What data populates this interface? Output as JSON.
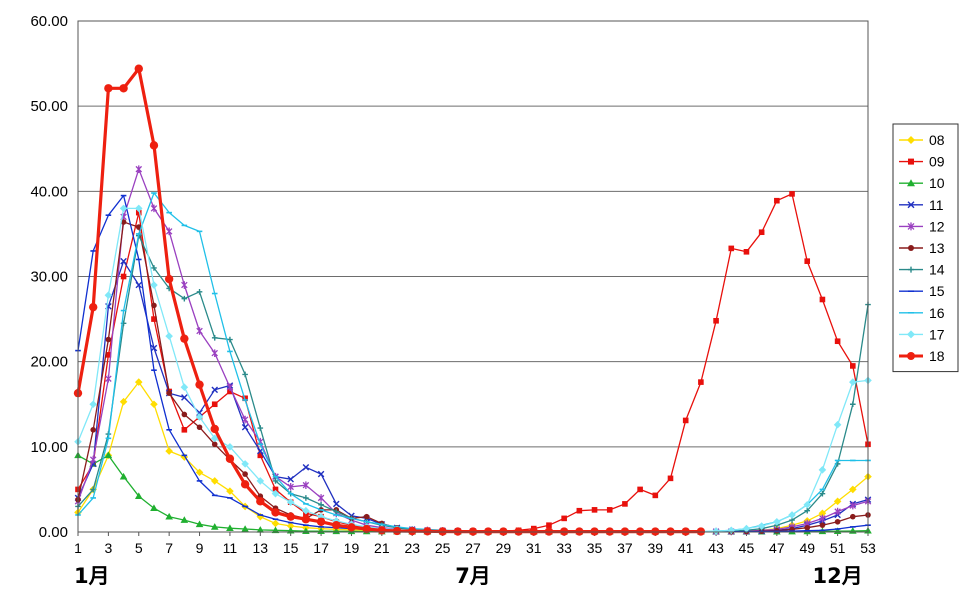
{
  "chart_data": {
    "type": "line",
    "title": "",
    "xlabel": "",
    "ylabel": "",
    "ylim": [
      0,
      60
    ],
    "xlim": [
      1,
      53
    ],
    "y_ticks": [
      "0.00",
      "10.00",
      "20.00",
      "30.00",
      "40.00",
      "50.00",
      "60.00"
    ],
    "x_ticks": [
      1,
      3,
      5,
      7,
      9,
      11,
      13,
      15,
      17,
      19,
      21,
      23,
      25,
      27,
      29,
      31,
      33,
      35,
      37,
      39,
      41,
      43,
      45,
      47,
      49,
      51,
      53
    ],
    "month_labels": [
      {
        "week": 1,
        "text": "1月"
      },
      {
        "week": 27,
        "text": "7月"
      },
      {
        "week": 51,
        "text": "12月"
      }
    ],
    "grid": "horizontal",
    "legend_position": "right",
    "series": [
      {
        "name": "08",
        "color": "#ffdd00",
        "marker": "diamond",
        "values": [
          2.3,
          5.0,
          9.0,
          15.3,
          17.6,
          15.0,
          9.5,
          8.8,
          7.0,
          6.0,
          4.8,
          3.0,
          1.8,
          1.0,
          0.7,
          0.5,
          0.4,
          0.3,
          0.25,
          0.2,
          0.15,
          0.12,
          0.1,
          0.1,
          0.08,
          0.07,
          0.06,
          0.05,
          0.05,
          0.05,
          0.05,
          0.05,
          0.05,
          0.05,
          0.05,
          0.05,
          0.05,
          0.05,
          0.05,
          0.05,
          0.05,
          0.05,
          0.05,
          0.05,
          0.1,
          0.2,
          0.4,
          0.8,
          1.3,
          2.2,
          3.6,
          5.0,
          6.5
        ]
      },
      {
        "name": "09",
        "color": "#e8100c",
        "marker": "square",
        "values": [
          5.0,
          8.0,
          20.8,
          30.0,
          37.5,
          25.0,
          16.5,
          12.0,
          13.5,
          15.0,
          16.5,
          15.7,
          9.0,
          5.0,
          3.5,
          2.2,
          1.8,
          1.2,
          0.8,
          0.5,
          0.35,
          0.25,
          0.2,
          0.15,
          0.1,
          0.1,
          0.1,
          0.1,
          0.1,
          0.2,
          0.4,
          0.8,
          1.6,
          2.5,
          2.6,
          2.6,
          3.3,
          5.0,
          4.3,
          6.3,
          13.1,
          17.6,
          24.8,
          33.3,
          32.9,
          35.2,
          38.9,
          39.7,
          31.8,
          27.3,
          22.4,
          19.5,
          10.3
        ]
      },
      {
        "name": "10",
        "color": "#20b030",
        "marker": "triangle",
        "values": [
          9.0,
          8.0,
          9.0,
          6.5,
          4.2,
          2.8,
          1.8,
          1.4,
          0.9,
          0.6,
          0.45,
          0.35,
          0.25,
          0.2,
          0.15,
          0.1,
          0.1,
          0.08,
          0.08,
          0.06,
          0.05,
          0.05,
          0.04,
          0.04,
          0.03,
          0.03,
          0.03,
          0.03,
          0.03,
          0.03,
          0.03,
          0.03,
          0.03,
          0.03,
          0.03,
          0.03,
          0.03,
          0.03,
          0.03,
          0.03,
          0.03,
          0.03,
          0.03,
          0.03,
          0.03,
          0.03,
          0.04,
          0.05,
          0.06,
          0.08,
          0.1,
          0.12,
          0.15
        ]
      },
      {
        "name": "11",
        "color": "#2030c0",
        "marker": "x",
        "values": [
          4.0,
          8.0,
          26.5,
          31.8,
          29.0,
          21.6,
          16.3,
          15.8,
          14.0,
          16.7,
          17.2,
          12.3,
          9.5,
          6.5,
          6.2,
          7.6,
          6.8,
          3.3,
          1.9,
          1.6,
          0.9,
          0.5,
          0.3,
          0.2,
          0.15,
          0.1,
          0.08,
          0.06,
          0.05,
          0.05,
          0.05,
          0.05,
          0.05,
          0.05,
          0.05,
          0.05,
          0.05,
          0.05,
          0.05,
          0.05,
          0.05,
          0.05,
          0.05,
          0.05,
          0.06,
          0.1,
          0.2,
          0.4,
          0.8,
          1.3,
          2.0,
          3.3,
          3.8
        ]
      },
      {
        "name": "12",
        "color": "#9a40c0",
        "marker": "star",
        "values": [
          3.6,
          8.5,
          18.0,
          37.0,
          42.6,
          38.0,
          35.3,
          29.0,
          23.6,
          21.0,
          17.0,
          13.2,
          10.6,
          6.5,
          5.3,
          5.5,
          4.0,
          2.2,
          1.4,
          0.8,
          0.5,
          0.35,
          0.25,
          0.18,
          0.12,
          0.1,
          0.08,
          0.06,
          0.05,
          0.05,
          0.05,
          0.05,
          0.05,
          0.05,
          0.05,
          0.05,
          0.05,
          0.05,
          0.05,
          0.05,
          0.05,
          0.05,
          0.05,
          0.06,
          0.1,
          0.2,
          0.3,
          0.6,
          1.0,
          1.6,
          2.4,
          3.1,
          3.6
        ]
      },
      {
        "name": "13",
        "color": "#8a1c1c",
        "marker": "circle",
        "values": [
          3.8,
          12.0,
          22.6,
          36.4,
          35.8,
          26.6,
          16.3,
          13.8,
          12.3,
          10.3,
          8.5,
          6.8,
          4.2,
          2.8,
          2.0,
          1.6,
          2.6,
          2.6,
          1.6,
          1.8,
          1.0,
          0.5,
          0.3,
          0.2,
          0.15,
          0.1,
          0.08,
          0.06,
          0.05,
          0.05,
          0.05,
          0.05,
          0.05,
          0.05,
          0.05,
          0.05,
          0.05,
          0.05,
          0.05,
          0.05,
          0.05,
          0.05,
          0.05,
          0.05,
          0.05,
          0.1,
          0.15,
          0.3,
          0.5,
          0.8,
          1.2,
          1.8,
          2.0
        ]
      },
      {
        "name": "14",
        "color": "#2a8a8a",
        "marker": "plus",
        "values": [
          3.0,
          5.0,
          11.5,
          24.5,
          34.8,
          31.0,
          28.6,
          27.4,
          28.2,
          22.8,
          22.6,
          18.5,
          12.2,
          6.0,
          4.5,
          4.0,
          3.2,
          2.4,
          1.6,
          1.2,
          0.8,
          0.5,
          0.3,
          0.2,
          0.15,
          0.1,
          0.08,
          0.06,
          0.05,
          0.05,
          0.05,
          0.05,
          0.05,
          0.05,
          0.05,
          0.05,
          0.05,
          0.05,
          0.05,
          0.05,
          0.05,
          0.05,
          0.05,
          0.1,
          0.2,
          0.4,
          0.8,
          1.4,
          2.5,
          4.5,
          8.0,
          15.0,
          26.7
        ]
      },
      {
        "name": "15",
        "color": "#1030d0",
        "marker": "dash",
        "values": [
          21.3,
          33.0,
          37.2,
          39.5,
          32.0,
          19.0,
          12.0,
          9.0,
          6.0,
          4.3,
          4.0,
          3.0,
          2.0,
          1.5,
          1.1,
          0.8,
          0.6,
          0.5,
          0.4,
          0.3,
          0.25,
          0.2,
          0.15,
          0.12,
          0.1,
          0.08,
          0.06,
          0.05,
          0.05,
          0.05,
          0.05,
          0.05,
          0.05,
          0.05,
          0.05,
          0.05,
          0.05,
          0.05,
          0.05,
          0.05,
          0.05,
          0.05,
          0.05,
          0.05,
          0.05,
          0.06,
          0.08,
          0.1,
          0.15,
          0.2,
          0.35,
          0.6,
          0.8
        ]
      },
      {
        "name": "16",
        "color": "#20c0e8",
        "marker": "dash",
        "values": [
          2.0,
          4.0,
          11.0,
          26.0,
          35.0,
          39.8,
          37.5,
          36.0,
          35.3,
          28.0,
          21.2,
          15.5,
          10.3,
          6.5,
          4.5,
          3.3,
          2.6,
          2.0,
          1.6,
          1.2,
          0.9,
          0.6,
          0.4,
          0.3,
          0.2,
          0.15,
          0.1,
          0.08,
          0.06,
          0.05,
          0.05,
          0.05,
          0.05,
          0.05,
          0.05,
          0.05,
          0.05,
          0.05,
          0.05,
          0.05,
          0.05,
          0.05,
          0.1,
          0.2,
          0.4,
          0.8,
          1.2,
          2.0,
          3.2,
          5.0,
          8.4,
          8.4,
          8.4
        ]
      },
      {
        "name": "17",
        "color": "#80e8f8",
        "marker": "diamond",
        "values": [
          10.6,
          15.0,
          27.8,
          38.0,
          38.0,
          29.0,
          23.0,
          17.0,
          13.5,
          11.0,
          10.0,
          8.0,
          6.0,
          4.5,
          3.5,
          2.5,
          1.8,
          1.3,
          0.9,
          0.6,
          0.4,
          0.3,
          0.2,
          0.15,
          0.1,
          0.08,
          0.06,
          0.05,
          0.05,
          0.05,
          0.05,
          0.05,
          0.05,
          0.05,
          0.05,
          0.05,
          0.05,
          0.05,
          0.05,
          0.05,
          0.05,
          0.05,
          0.1,
          0.2,
          0.4,
          0.7,
          1.2,
          2.0,
          3.2,
          7.3,
          12.6,
          17.6,
          17.8
        ]
      },
      {
        "name": "18",
        "color": "#ee2010",
        "marker": "circle",
        "bold": true,
        "values": [
          16.3,
          26.4,
          52.1,
          52.1,
          54.4,
          45.4,
          29.7,
          22.7,
          17.3,
          12.1,
          8.6,
          5.6,
          3.6,
          2.3,
          1.8,
          1.5,
          1.2,
          0.8,
          0.55,
          0.35,
          0.2,
          0.12,
          0.1,
          0.08,
          0.06,
          0.05,
          0.05,
          0.05,
          0.05,
          0.05,
          0.05,
          0.05,
          0.05,
          0.05,
          0.05,
          0.05,
          0.05,
          0.05,
          0.05,
          0.05,
          0.05,
          0.05
        ]
      }
    ]
  }
}
